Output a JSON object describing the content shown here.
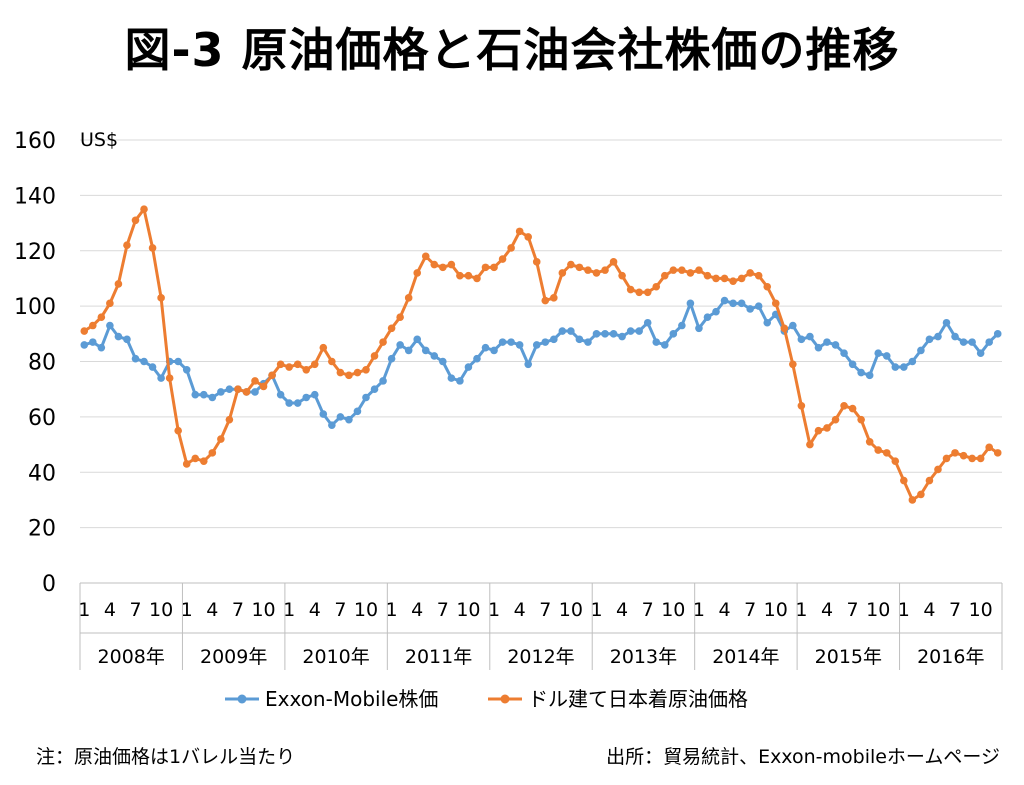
{
  "title": "図-3 原油価格と石油会社株価の推移",
  "notes": {
    "left": "注：原油価格は1バレル当たり",
    "right": "出所：貿易統計、Exxon-mobileホームページ"
  },
  "chart_data": {
    "type": "line",
    "title": "図-3 原油価格と石油会社株価の推移",
    "ylabel": "US$",
    "ylim": [
      0,
      160
    ],
    "yticks": [
      0,
      20,
      40,
      60,
      80,
      100,
      120,
      140,
      160
    ],
    "grid": true,
    "legend_position": "bottom",
    "years": [
      "2008年",
      "2009年",
      "2010年",
      "2011年",
      "2012年",
      "2013年",
      "2014年",
      "2015年",
      "2016年"
    ],
    "month_ticks": [
      "1",
      "4",
      "7",
      "10"
    ],
    "series": [
      {
        "name": "Exxon-Mobile株価",
        "color": "#5B9BD5",
        "values": [
          86,
          87,
          85,
          93,
          89,
          88,
          81,
          80,
          78,
          74,
          80,
          80,
          77,
          68,
          68,
          67,
          69,
          70,
          70,
          69,
          69,
          72,
          75,
          68,
          65,
          65,
          67,
          68,
          61,
          57,
          60,
          59,
          62,
          67,
          70,
          73,
          81,
          86,
          84,
          88,
          84,
          82,
          80,
          74,
          73,
          78,
          81,
          85,
          84,
          87,
          87,
          86,
          79,
          86,
          87,
          88,
          91,
          91,
          88,
          87,
          90,
          90,
          90,
          89,
          91,
          91,
          94,
          87,
          86,
          90,
          93,
          101,
          92,
          96,
          98,
          102,
          101,
          101,
          99,
          100,
          94,
          97,
          91,
          93,
          88,
          89,
          85,
          87,
          86,
          83,
          79,
          76,
          75,
          83,
          82,
          78,
          78,
          80,
          84,
          88,
          89,
          94,
          89,
          87,
          87,
          83,
          87,
          90
        ]
      },
      {
        "name": "ドル建て日本着原油価格",
        "color": "#ED7D31",
        "values": [
          91,
          93,
          96,
          101,
          108,
          122,
          131,
          135,
          121,
          103,
          74,
          55,
          43,
          45,
          44,
          47,
          52,
          59,
          70,
          69,
          73,
          71,
          75,
          79,
          78,
          79,
          77,
          79,
          85,
          80,
          76,
          75,
          76,
          77,
          82,
          87,
          92,
          96,
          103,
          112,
          118,
          115,
          114,
          115,
          111,
          111,
          110,
          114,
          114,
          117,
          121,
          127,
          125,
          116,
          102,
          103,
          112,
          115,
          114,
          113,
          112,
          113,
          116,
          111,
          106,
          105,
          105,
          107,
          111,
          113,
          113,
          112,
          113,
          111,
          110,
          110,
          109,
          110,
          112,
          111,
          107,
          101,
          92,
          79,
          64,
          50,
          55,
          56,
          59,
          64,
          63,
          59,
          51,
          48,
          47,
          44,
          37,
          30,
          32,
          37,
          41,
          45,
          47,
          46,
          45,
          45,
          49,
          47
        ]
      }
    ]
  }
}
